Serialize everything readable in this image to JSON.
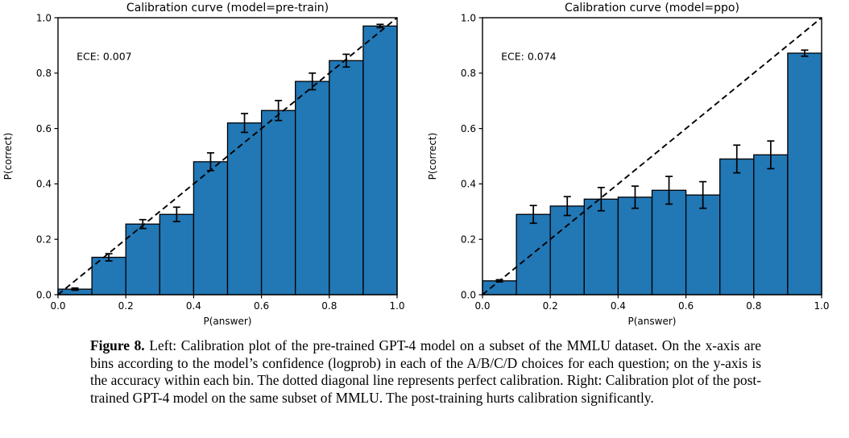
{
  "chart_data": [
    {
      "type": "bar",
      "id": "pre-train",
      "title": "Calibration curve (model=pre-train)",
      "annotation": "ECE: 0.007",
      "xlabel": "P(answer)",
      "ylabel": "P(correct)",
      "xlim": [
        0.0,
        1.0
      ],
      "ylim": [
        0.0,
        1.0
      ],
      "xticks": [
        0.0,
        0.2,
        0.4,
        0.6,
        0.8,
        1.0
      ],
      "yticks": [
        0.0,
        0.2,
        0.4,
        0.6,
        0.8,
        1.0
      ],
      "grid": false,
      "bin_width": 0.1,
      "bin_starts": [
        0.0,
        0.1,
        0.2,
        0.3,
        0.4,
        0.5,
        0.6,
        0.7,
        0.8,
        0.9
      ],
      "values": [
        0.02,
        0.135,
        0.255,
        0.29,
        0.48,
        0.62,
        0.665,
        0.77,
        0.845,
        0.97
      ],
      "errors": [
        0.004,
        0.013,
        0.016,
        0.026,
        0.032,
        0.034,
        0.036,
        0.03,
        0.023,
        0.006
      ],
      "diagonal": "perfect calibration reference (0,0)-(1,1), dashed"
    },
    {
      "type": "bar",
      "id": "ppo",
      "title": "Calibration curve (model=ppo)",
      "annotation": "ECE: 0.074",
      "xlabel": "P(answer)",
      "ylabel": "P(correct)",
      "xlim": [
        0.0,
        1.0
      ],
      "ylim": [
        0.0,
        1.0
      ],
      "xticks": [
        0.0,
        0.2,
        0.4,
        0.6,
        0.8,
        1.0
      ],
      "yticks": [
        0.0,
        0.2,
        0.4,
        0.6,
        0.8,
        1.0
      ],
      "grid": false,
      "bin_width": 0.1,
      "bin_starts": [
        0.0,
        0.1,
        0.2,
        0.3,
        0.4,
        0.5,
        0.6,
        0.7,
        0.8,
        0.9
      ],
      "values": [
        0.05,
        0.29,
        0.32,
        0.345,
        0.352,
        0.377,
        0.36,
        0.49,
        0.505,
        0.872
      ],
      "errors": [
        0.004,
        0.032,
        0.034,
        0.042,
        0.04,
        0.05,
        0.048,
        0.05,
        0.05,
        0.011
      ],
      "diagonal": "perfect calibration reference (0,0)-(1,1), dashed"
    }
  ],
  "caption": {
    "label": "Figure 8.",
    "text": "Left: Calibration plot of the pre-trained GPT-4 model on a subset of the MMLU dataset. On the x-axis are bins according to the model’s confidence (logprob) in each of the A/B/C/D choices for each question; on the y-axis is the accuracy within each bin. The dotted diagonal line represents perfect calibration. Right: Calibration plot of the post-trained GPT-4 model on the same subset of MMLU. The post-training hurts calibration significantly."
  },
  "colors": {
    "background": "#ffffff",
    "bar_fill": "#2277b5",
    "bar_edge": "#000000",
    "diagonal_line": "#000000",
    "axis": "#000000",
    "text": "#000000"
  }
}
